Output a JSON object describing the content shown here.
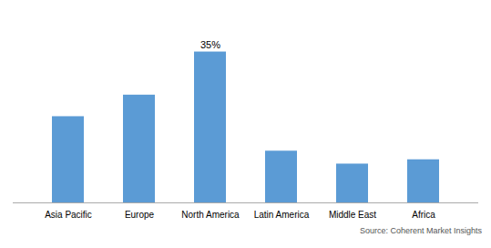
{
  "chart_data": {
    "type": "bar",
    "categories": [
      "Asia Pacific",
      "Europe",
      "North America",
      "Latin America",
      "Middle East",
      "Africa"
    ],
    "values": [
      20,
      25,
      35,
      12,
      9,
      10
    ],
    "color": "#5B9BD5",
    "ylim": [
      0,
      44
    ],
    "grid": false,
    "tick_labels": "x",
    "annotations": [
      {
        "x": "North America",
        "y": 35,
        "text": "35%"
      }
    ],
    "source": "Source: Coherent Market Insights"
  }
}
